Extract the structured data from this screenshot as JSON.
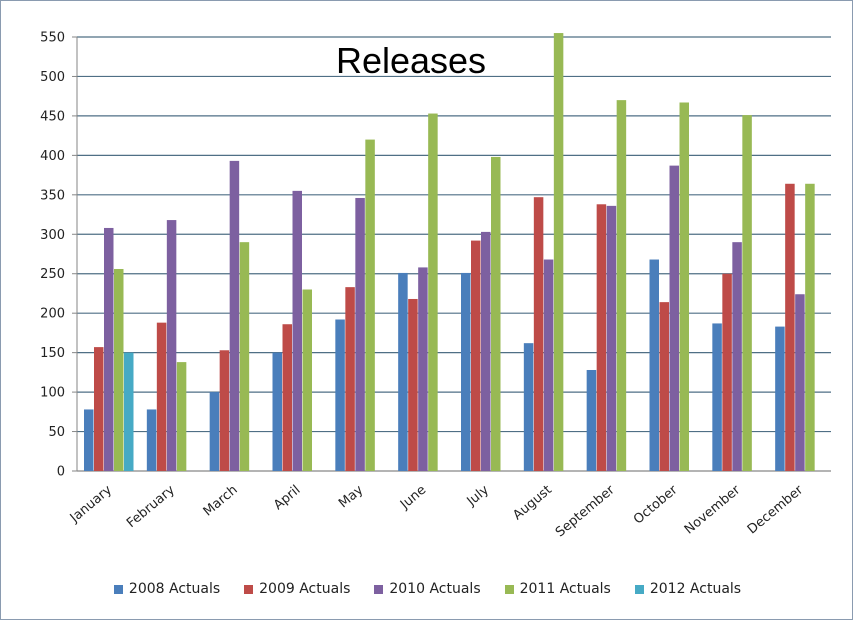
{
  "chart_data": {
    "type": "bar",
    "title": "Releases",
    "xlabel": "",
    "ylabel": "",
    "ylim": [
      0,
      550
    ],
    "yticks": [
      0,
      50,
      100,
      150,
      200,
      250,
      300,
      350,
      400,
      450,
      500,
      550
    ],
    "grid": true,
    "legend_position": "bottom",
    "categories": [
      "January",
      "February",
      "March",
      "April",
      "May",
      "June",
      "July",
      "August",
      "September",
      "October",
      "November",
      "December"
    ],
    "series": [
      {
        "name": "2008 Actuals",
        "color": "#4a7ebb",
        "values": [
          78,
          78,
          100,
          150,
          192,
          251,
          251,
          162,
          128,
          268,
          187,
          183
        ]
      },
      {
        "name": "2009 Actuals",
        "color": "#be4b48",
        "values": [
          157,
          188,
          153,
          186,
          233,
          218,
          292,
          347,
          338,
          214,
          250,
          364
        ]
      },
      {
        "name": "2010 Actuals",
        "color": "#7d60a0",
        "values": [
          308,
          318,
          393,
          355,
          346,
          258,
          303,
          268,
          336,
          387,
          290,
          224
        ]
      },
      {
        "name": "2011 Actuals",
        "color": "#98b954",
        "values": [
          256,
          138,
          290,
          230,
          420,
          453,
          398,
          555,
          470,
          467,
          451,
          364
        ]
      },
      {
        "name": "2012 Actuals",
        "color": "#46aac5",
        "values": [
          150,
          null,
          null,
          null,
          null,
          null,
          null,
          null,
          null,
          null,
          null,
          null
        ]
      }
    ]
  }
}
